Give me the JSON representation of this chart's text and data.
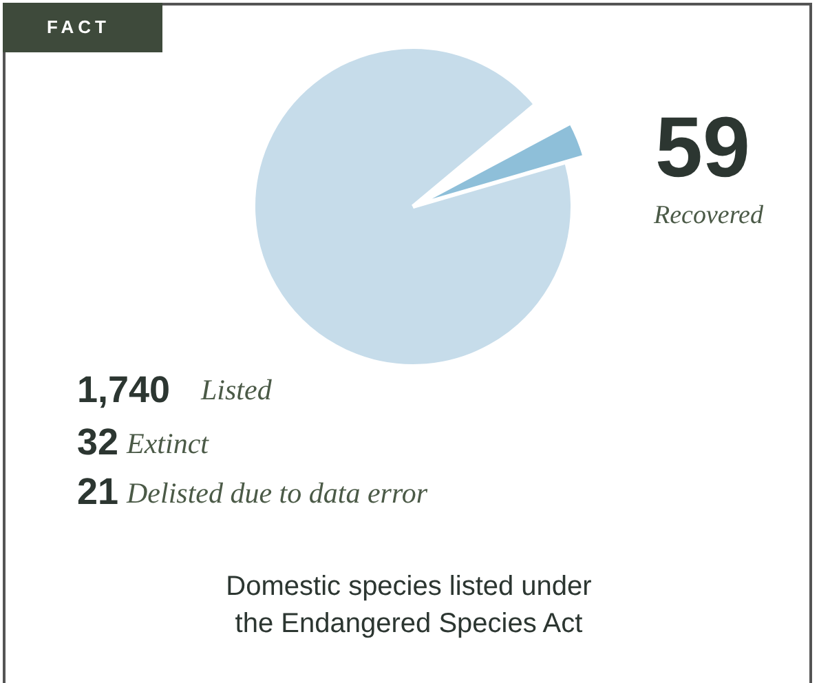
{
  "chart_data": {
    "type": "pie",
    "title": "Domestic species listed under the Endangered Species Act",
    "categories": [
      "Listed",
      "Recovered"
    ],
    "values": [
      1740,
      59
    ],
    "value_labels": [
      "1,740",
      "59"
    ],
    "colors": [
      "#c6dcea",
      "#8ebfd9"
    ],
    "annotations": [
      "FACT",
      "32 Extinct",
      "21 Delisted due to data error"
    ]
  }
}
